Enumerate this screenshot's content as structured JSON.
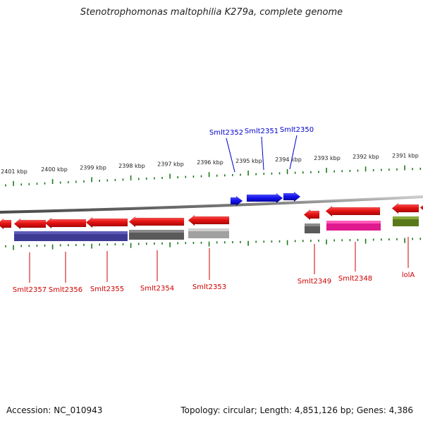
{
  "title": "Stenotrophomonas maltophilia K279a, complete genome",
  "footer": {
    "accession": "Accession: NC_010943",
    "summary": "Topology: circular; Length: 4,851,126 bp; Genes: 4,386"
  },
  "colors": {
    "forward_label": "#0000cc",
    "reverse_label": "#cc0000",
    "forward_gene": "#1a1aff",
    "reverse_gene": "#e51414",
    "tick": "#1a7a1a",
    "genome_line": "#888888"
  },
  "scale": {
    "labels": [
      "2401 kbp",
      "2400 kbp",
      "2399 kbp",
      "2398 kbp",
      "2397 kbp",
      "2396 kbp",
      "2395 kbp",
      "2394 kbp",
      "2393 kbp",
      "2392 kbp",
      "2391 kbp"
    ]
  },
  "forward_genes": [
    {
      "label": "Smlt2352"
    },
    {
      "label": "Smlt2351"
    },
    {
      "label": "Smlt2350"
    }
  ],
  "reverse_genes": [
    {
      "label": "Smlt2357"
    },
    {
      "label": "Smlt2356"
    },
    {
      "label": "Smlt2355"
    },
    {
      "label": "Smlt2354"
    },
    {
      "label": "Smlt2353"
    },
    {
      "label": "Smlt2349"
    },
    {
      "label": "Smlt2348"
    },
    {
      "label": "lolA"
    }
  ]
}
